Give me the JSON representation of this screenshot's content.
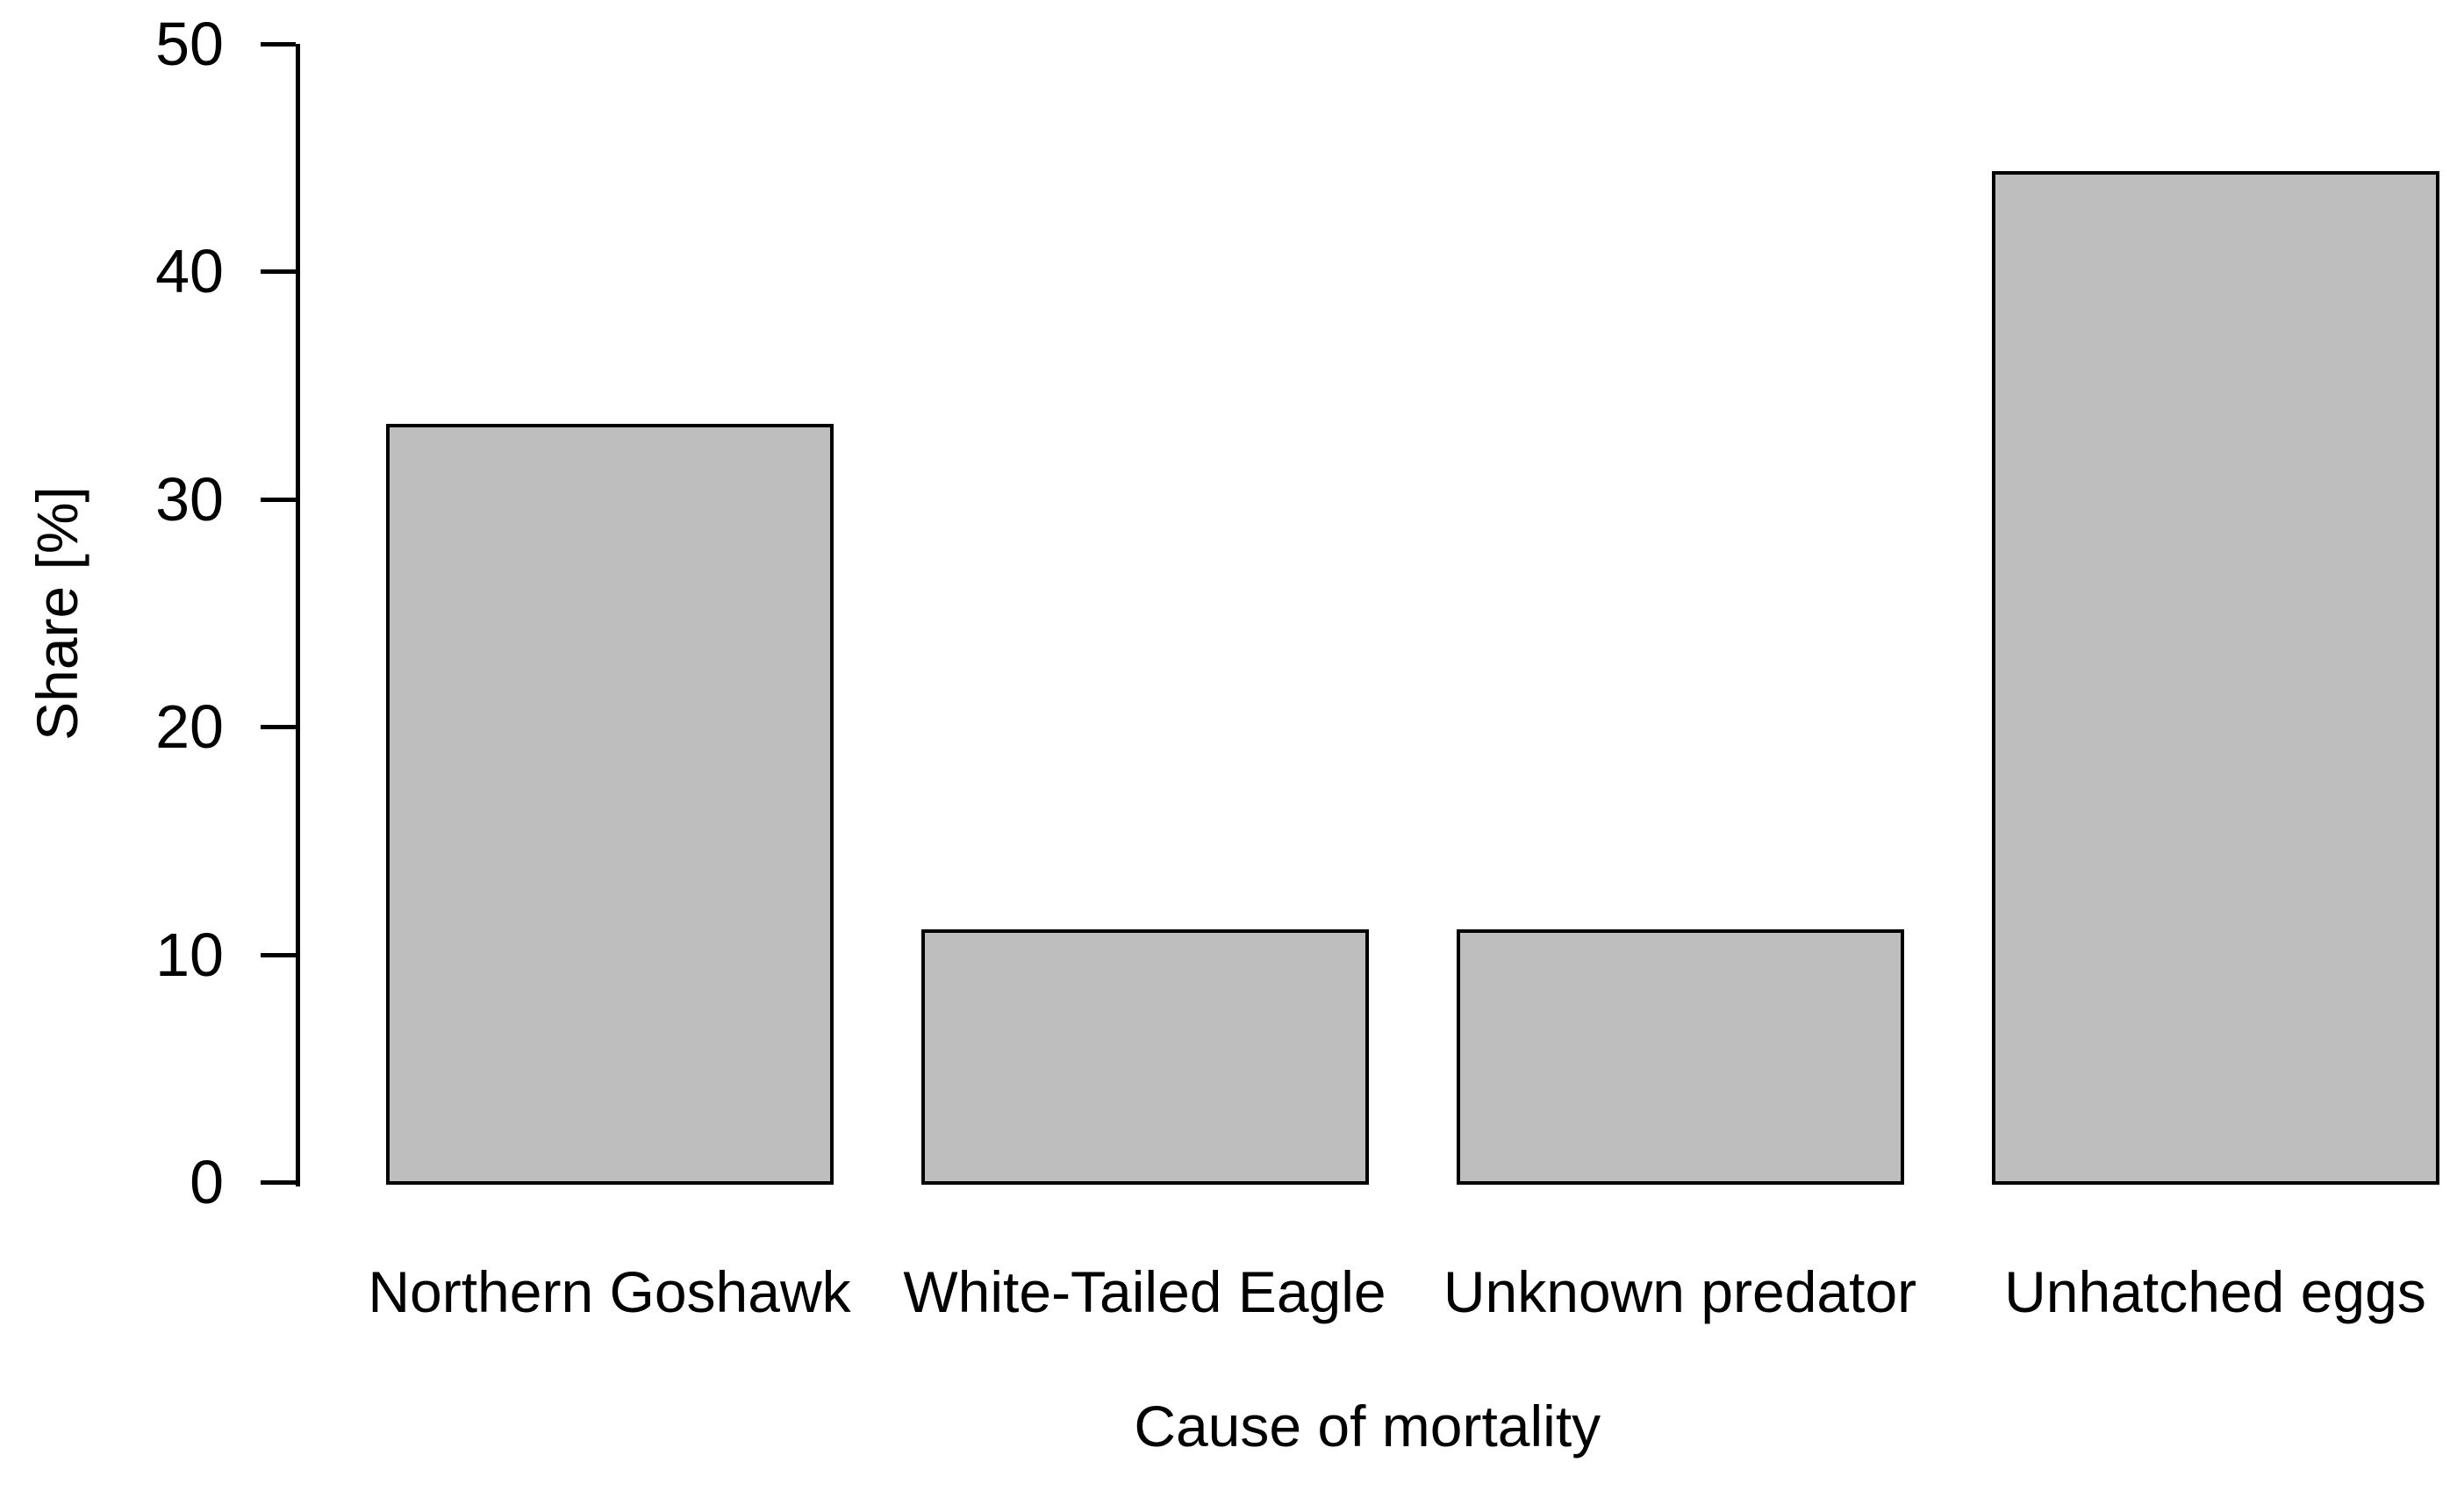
{
  "chart_data": {
    "type": "bar",
    "title": "",
    "categories": [
      "Northern Goshawk",
      "White-Tailed Eagle",
      "Unknown predator",
      "Unhatched eggs"
    ],
    "values": [
      33.3,
      11.1,
      11.1,
      44.4
    ],
    "xlabel": "Cause of mortality",
    "ylabel": "Share [%]",
    "ylim": [
      0,
      50
    ],
    "yticks": [
      0,
      10,
      20,
      30,
      40,
      50
    ],
    "grid": false,
    "legend": "none",
    "bar_fill": "#bebebe",
    "bar_border": "#000000",
    "axis_color": "#000000",
    "text_color": "#000000",
    "background": "#ffffff"
  }
}
